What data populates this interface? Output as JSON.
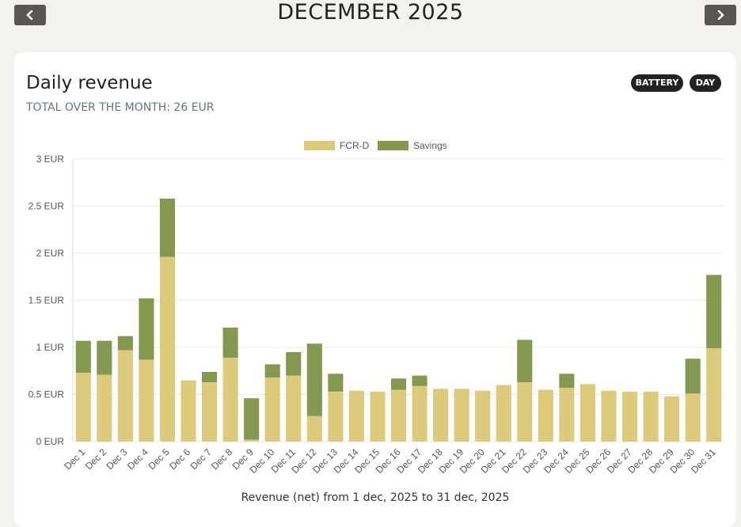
{
  "header": {
    "month_title": "DECEMBER 2025",
    "prev_icon": "chevron-left-icon",
    "next_icon": "chevron-right-icon"
  },
  "card": {
    "title": "Daily revenue",
    "subtitle": "TOTAL OVER THE MONTH: 26 EUR",
    "pills": [
      "BATTERY",
      "DAY"
    ]
  },
  "colors": {
    "fcr": "#dccb7b",
    "savings": "#84994f",
    "nav_button": "#5a5550",
    "pill": "#222222"
  },
  "chart_data": {
    "type": "bar",
    "stacked": true,
    "xlabel": "Revenue (net) from 1 dec, 2025 to 31 dec, 2025",
    "ylabel": "",
    "ylim": [
      0,
      3
    ],
    "yticks": [
      "0 EUR",
      "0.5 EUR",
      "1 EUR",
      "1.5 EUR",
      "2 EUR",
      "2.5 EUR",
      "3 EUR"
    ],
    "legend_position": "top-center",
    "grid": true,
    "categories": [
      "Dec 1",
      "Dec 2",
      "Dec 3",
      "Dec 4",
      "Dec 5",
      "Dec 6",
      "Dec 7",
      "Dec 8",
      "Dec 9",
      "Dec 10",
      "Dec 11",
      "Dec 12",
      "Dec 13",
      "Dec 14",
      "Dec 15",
      "Dec 16",
      "Dec 17",
      "Dec 18",
      "Dec 19",
      "Dec 20",
      "Dec 21",
      "Dec 22",
      "Dec 23",
      "Dec 24",
      "Dec 25",
      "Dec 26",
      "Dec 27",
      "Dec 28",
      "Dec 29",
      "Dec 30",
      "Dec 31"
    ],
    "series": [
      {
        "name": "FCR-D",
        "values": [
          0.73,
          0.71,
          0.97,
          0.87,
          1.96,
          0.65,
          0.63,
          0.89,
          0.02,
          0.68,
          0.7,
          0.27,
          0.53,
          0.54,
          0.53,
          0.55,
          0.59,
          0.56,
          0.56,
          0.54,
          0.6,
          0.63,
          0.55,
          0.57,
          0.61,
          0.54,
          0.53,
          0.53,
          0.48,
          0.51,
          0.99
        ]
      },
      {
        "name": "Savings",
        "values": [
          0.34,
          0.36,
          0.15,
          0.65,
          0.62,
          0.0,
          0.11,
          0.32,
          0.44,
          0.14,
          0.25,
          0.77,
          0.19,
          0.0,
          0.0,
          0.12,
          0.11,
          0.0,
          0.0,
          0.0,
          0.0,
          0.45,
          0.0,
          0.15,
          0.0,
          0.0,
          0.0,
          0.0,
          0.0,
          0.37,
          0.78
        ]
      }
    ]
  }
}
